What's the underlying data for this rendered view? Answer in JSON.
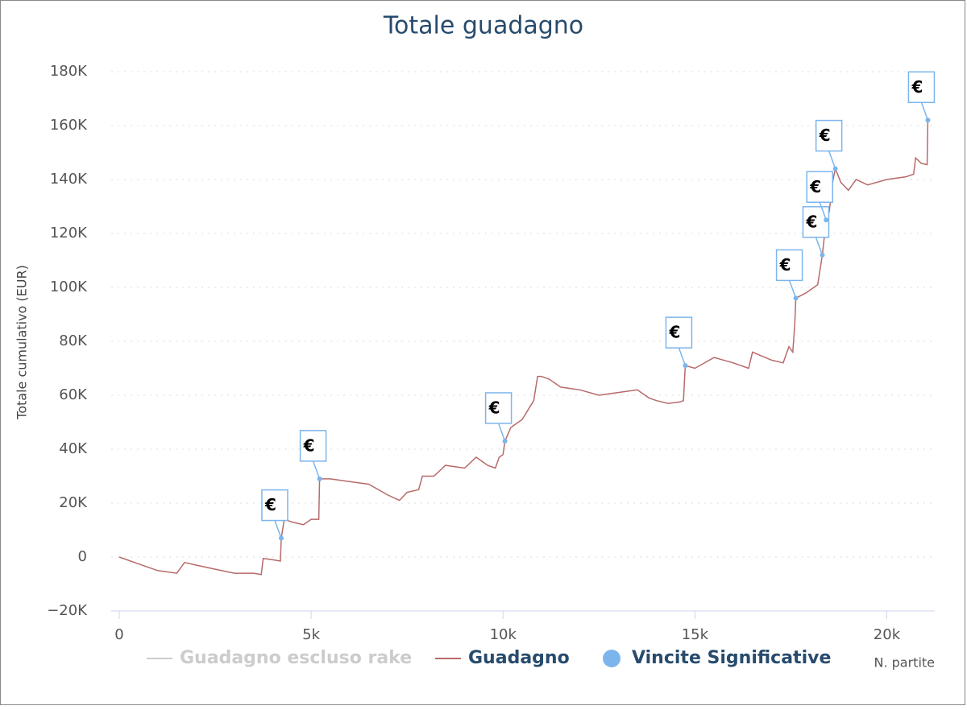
{
  "chart_data": {
    "type": "line",
    "title": "Totale guadagno",
    "y_label": "Totale cumulativo (EUR)",
    "x_label": "N. partite",
    "xlim": [
      0,
      21250
    ],
    "ylim": [
      -20000,
      180000
    ],
    "xticks": [
      0,
      {
        "value": 5000,
        "label": "5k"
      },
      {
        "value": 10000,
        "label": "10k"
      },
      {
        "value": 15000,
        "label": "15k"
      },
      {
        "value": 20000,
        "label": "20k"
      }
    ],
    "yticks": [
      {
        "value": -20000,
        "label": "−20K"
      },
      0,
      {
        "value": 20000,
        "label": "20K"
      },
      {
        "value": 40000,
        "label": "40K"
      },
      {
        "value": 60000,
        "label": "60K"
      },
      {
        "value": 80000,
        "label": "80K"
      },
      {
        "value": 100000,
        "label": "100K"
      },
      {
        "value": 120000,
        "label": "120K"
      },
      {
        "value": 140000,
        "label": "140K"
      },
      {
        "value": 160000,
        "label": "160K"
      },
      {
        "value": 180000,
        "label": "180K"
      }
    ],
    "grid": true,
    "series": [
      {
        "name": "Guadagno escluso rake",
        "color": "#cccccc",
        "visible": false
      },
      {
        "name": "Guadagno",
        "color": "#b86a6a",
        "x": [
          0,
          500,
          1000,
          1500,
          1700,
          2000,
          2500,
          3000,
          3500,
          3700,
          3750,
          4000,
          4200,
          4220,
          4300,
          4500,
          4800,
          5000,
          5200,
          5220,
          5500,
          6000,
          6500,
          7000,
          7300,
          7500,
          7800,
          7900,
          8200,
          8500,
          9000,
          9300,
          9600,
          9800,
          9900,
          10000,
          10050,
          10200,
          10500,
          10800,
          10900,
          11000,
          11200,
          11500,
          12000,
          12500,
          13000,
          13500,
          13800,
          14000,
          14300,
          14600,
          14700,
          14750,
          15000,
          15500,
          16000,
          16400,
          16500,
          17000,
          17300,
          17450,
          17550,
          17600,
          17630,
          17900,
          18100,
          18200,
          18320,
          18420,
          18500,
          18600,
          18660,
          18800,
          19000,
          19200,
          19500,
          20000,
          20500,
          20700,
          20750,
          20900,
          21050,
          21070
        ],
        "values": [
          0,
          -2500,
          -5000,
          -6000,
          -2000,
          -3000,
          -4500,
          -6000,
          -6000,
          -6500,
          -500,
          -1000,
          -1500,
          7000,
          14000,
          13000,
          12000,
          14000,
          14000,
          29000,
          29000,
          28000,
          27000,
          23000,
          21000,
          24000,
          25000,
          30000,
          30000,
          34000,
          33000,
          37000,
          34000,
          33000,
          37000,
          38000,
          43000,
          48000,
          51000,
          58000,
          67000,
          67000,
          66000,
          63000,
          62000,
          60000,
          61000,
          62000,
          59000,
          58000,
          57000,
          57500,
          58000,
          71000,
          70000,
          74000,
          72000,
          70000,
          76000,
          73000,
          72000,
          78000,
          76000,
          86000,
          96000,
          98000,
          100000,
          101000,
          112000,
          125000,
          128000,
          140000,
          144000,
          139000,
          136000,
          140000,
          138000,
          140000,
          141000,
          142000,
          148000,
          146000,
          145500,
          162000
        ]
      },
      {
        "name": "Vincite Significative",
        "color": "#7cb5ec",
        "flag_label": "€",
        "x": [
          4220,
          5220,
          10050,
          14750,
          17630,
          18320,
          18420,
          18660,
          21070
        ],
        "values": [
          7000,
          29000,
          43000,
          71000,
          96000,
          112000,
          125000,
          144000,
          162000
        ]
      }
    ]
  }
}
